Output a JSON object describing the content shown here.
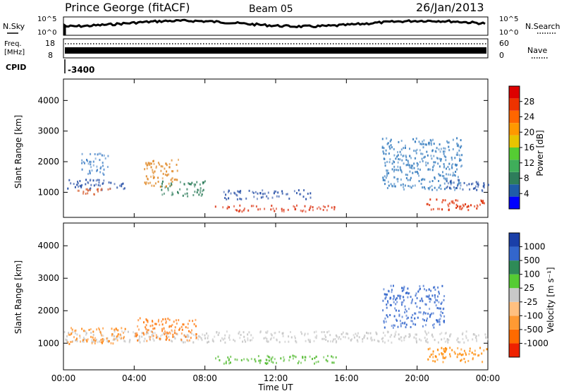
{
  "header": {
    "station": "Prince George (fitACF)",
    "beam": "Beam 05",
    "date": "26/Jan/2013"
  },
  "top_panels": {
    "nsky_label": "N.Sky",
    "nsearch_label": "N.Search",
    "freq_label_1": "Freq.",
    "freq_label_2": "[MHz]",
    "nave_label": "Nave",
    "cpid_label": "CPID",
    "cpid_value": "-3400",
    "left_ticks_noise": [
      "10^5",
      "10^0"
    ],
    "right_ticks_noise": [
      "10^5",
      "10^0"
    ],
    "left_ticks_freq": [
      "18",
      "8"
    ],
    "right_ticks_freq": [
      "60",
      "0"
    ]
  },
  "chart_data": [
    {
      "type": "heatmap",
      "title": "",
      "ylabel": "Slant Range [km]",
      "xlabel": "",
      "ylim": [
        180,
        4700
      ],
      "y_ticks": [
        1000,
        2000,
        3000,
        4000
      ],
      "x_ticks": [
        "00:00",
        "04:00",
        "08:00",
        "12:00",
        "16:00",
        "20:00",
        "00:00"
      ],
      "colorbar": {
        "label": "Power [dB]",
        "ticks": [
          "4",
          "8",
          "12",
          "16",
          "20",
          "24",
          "28"
        ],
        "colors": [
          "#0000ff",
          "#1f5ca8",
          "#2e7d5b",
          "#3fae5a",
          "#55cc33",
          "#e8c400",
          "#ff9900",
          "#ff6600",
          "#ee3300",
          "#dd0000"
        ]
      },
      "regions": [
        {
          "t0": 0.2,
          "t1": 3.5,
          "r0": 1100,
          "r1": 1450,
          "color": "#2a52a8"
        },
        {
          "t0": 0.5,
          "t1": 2.8,
          "r0": 950,
          "r1": 1150,
          "color": "#d65a2a"
        },
        {
          "t0": 1.0,
          "t1": 2.5,
          "r0": 1600,
          "r1": 2300,
          "color": "#4a86c9"
        },
        {
          "t0": 4.5,
          "t1": 6.5,
          "r0": 1200,
          "r1": 2100,
          "color": "#e08a2a"
        },
        {
          "t0": 5.5,
          "t1": 8.0,
          "r0": 900,
          "r1": 1400,
          "color": "#2e7d5b"
        },
        {
          "t0": 8.5,
          "t1": 15.5,
          "r0": 400,
          "r1": 600,
          "color": "#dd3a1a"
        },
        {
          "t0": 9.0,
          "t1": 14.0,
          "r0": 800,
          "r1": 1100,
          "color": "#2a52a8"
        },
        {
          "t0": 18.0,
          "t1": 22.5,
          "r0": 1100,
          "r1": 2800,
          "color": "#3a7fc0"
        },
        {
          "t0": 20.5,
          "t1": 24.0,
          "r0": 450,
          "r1": 800,
          "color": "#dd2a00"
        },
        {
          "t0": 21.5,
          "t1": 24.0,
          "r0": 1050,
          "r1": 1450,
          "color": "#2a52a8"
        }
      ]
    },
    {
      "type": "heatmap",
      "title": "",
      "ylabel": "Slant Range [km]",
      "xlabel": "Time UT",
      "ylim": [
        180,
        4700
      ],
      "y_ticks": [
        1000,
        2000,
        3000,
        4000
      ],
      "x_ticks": [
        "00:00",
        "04:00",
        "08:00",
        "12:00",
        "16:00",
        "20:00",
        "00:00"
      ],
      "colorbar": {
        "label": "Velocity [m s⁻¹]",
        "ticks": [
          "1000",
          "500",
          "100",
          "25",
          "-25",
          "-100",
          "-500",
          "-1000"
        ],
        "colors": [
          "#1a3fa8",
          "#3366cc",
          "#2e8b57",
          "#55cc33",
          "#c8c8c8",
          "#ffc080",
          "#ff9a33",
          "#ff6a00",
          "#ee2200"
        ]
      },
      "regions": [
        {
          "t0": 0.0,
          "t1": 24.0,
          "r0": 1050,
          "r1": 1400,
          "color": "#c8c8c8"
        },
        {
          "t0": 0.2,
          "t1": 3.5,
          "r0": 1000,
          "r1": 1500,
          "color": "#ff8a1a"
        },
        {
          "t0": 4.0,
          "t1": 7.5,
          "r0": 1100,
          "r1": 1800,
          "color": "#ff7a10"
        },
        {
          "t0": 8.5,
          "t1": 15.5,
          "r0": 400,
          "r1": 650,
          "color": "#55bb33"
        },
        {
          "t0": 18.0,
          "t1": 21.5,
          "r0": 1500,
          "r1": 2800,
          "color": "#3366cc"
        },
        {
          "t0": 20.5,
          "t1": 24.0,
          "r0": 450,
          "r1": 900,
          "color": "#ff8800"
        }
      ]
    }
  ]
}
